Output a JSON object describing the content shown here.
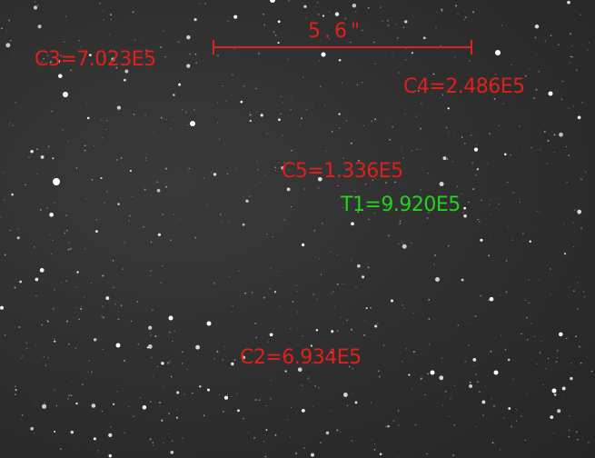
{
  "scale_bar": {
    "label": "5.6\""
  },
  "colors": {
    "comparison": "#e0201c",
    "target": "#22d21c",
    "star": "#ffffff"
  },
  "markers": [
    {
      "id": "c3",
      "label": "C3=7.023E5",
      "type": "comparison"
    },
    {
      "id": "c4",
      "label": "C4=2.486E5",
      "type": "comparison"
    },
    {
      "id": "c5",
      "label": "C5=1.336E5",
      "type": "comparison"
    },
    {
      "id": "t1",
      "label": "T1=9.920E5",
      "type": "target"
    },
    {
      "id": "c2",
      "label": "C2=6.934E5",
      "type": "comparison"
    }
  ]
}
